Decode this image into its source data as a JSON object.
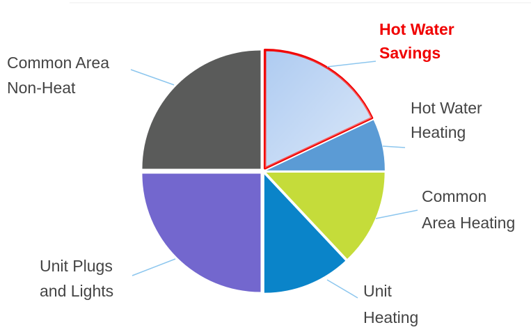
{
  "chart_data": {
    "type": "pie",
    "categories": [
      [
        "Hot Water",
        "Savings"
      ],
      [
        "Hot Water",
        "Heating"
      ],
      [
        "Common",
        "Area Heating"
      ],
      [
        "Unit",
        "Heating"
      ],
      [
        "Unit Plugs",
        "and Lights"
      ],
      [
        "Common Area",
        "Non-Heat"
      ]
    ],
    "values": [
      18,
      7,
      13,
      12,
      25,
      25
    ],
    "colors": [
      "#aecbf1",
      "#5b9bd5",
      "#c5dc3a",
      "#0a84c9",
      "#7367ce",
      "#5a5b5a"
    ],
    "highlight": {
      "index": 0,
      "color": "#f00000"
    }
  }
}
